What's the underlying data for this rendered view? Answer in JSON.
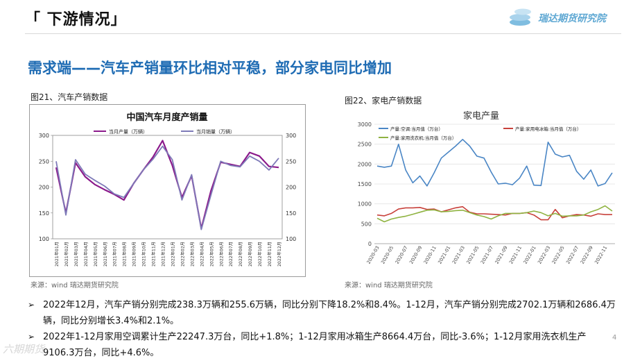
{
  "header": {
    "title": "「 下游情况」",
    "logo_text": "瑞达期货研究院"
  },
  "headline": "需求端——汽车产销量环比相对平稳，部分家电同比增加",
  "figure1": {
    "caption": "图21、汽车产销数据",
    "source": "来源：wind   瑞达期货研究院",
    "chart_data": {
      "type": "line",
      "title": "中国汽车月度产销量",
      "categories": [
        "2021年01月",
        "2021年02月",
        "2021年03月",
        "2021年04月",
        "2021年05月",
        "2021年06月",
        "2021年07月",
        "2021年08月",
        "2021年09月",
        "2021年10月",
        "2021年11月",
        "2021年12月",
        "2022年01月",
        "2022年02月",
        "2022年03月",
        "2022年04月",
        "2022年05月",
        "2022年06月",
        "2022年07月",
        "2022年08月",
        "2022年09月",
        "2022年10月",
        "2022年11月",
        "2022年12月"
      ],
      "ylim": [
        100,
        300
      ],
      "yticks": [
        100,
        150,
        200,
        250,
        300
      ],
      "legend_position": "top",
      "series": [
        {
          "name": "当月产量（万辆）",
          "color": "#8b1a8b",
          "values": [
            238,
            150,
            247,
            220,
            205,
            195,
            186,
            175,
            207,
            233,
            258,
            290,
            242,
            180,
            222,
            120,
            193,
            248,
            244,
            240,
            267,
            260,
            240,
            238
          ]
        },
        {
          "name": "当月销量（万辆）",
          "color": "#7e7ab8",
          "values": [
            250,
            146,
            253,
            225,
            213,
            202,
            187,
            180,
            207,
            233,
            254,
            279,
            253,
            175,
            224,
            118,
            185,
            250,
            242,
            239,
            260,
            250,
            233,
            256
          ]
        }
      ]
    }
  },
  "figure2": {
    "caption": "图22、家电产销数据",
    "source": "来源：wind   瑞达期货研究院",
    "chart_data": {
      "type": "line",
      "title": "家电产量",
      "ylim": [
        0,
        3000
      ],
      "yticks": [
        0,
        500,
        1000,
        1500,
        2000,
        2500,
        3000
      ],
      "xticks": [
        "2020-03",
        "2020-05",
        "2020-07",
        "2020-09",
        "2020-11",
        "2021-01",
        "2021-03",
        "2021-05",
        "2021-07",
        "2021-09",
        "2021-11",
        "2022-01",
        "2022-03",
        "2022-05",
        "2022-07",
        "2022-09",
        "2022-11"
      ],
      "legend_position": "top",
      "series": [
        {
          "name": "产量:空调:当月值（万台）",
          "color": "#4a86c5",
          "values": [
            1950,
            1920,
            1950,
            2500,
            1850,
            1530,
            1700,
            1450,
            1780,
            2150,
            2300,
            2450,
            2620,
            2450,
            2200,
            2150,
            1800,
            1500,
            1520,
            1480,
            1650,
            1950,
            1470,
            1460,
            2550,
            2250,
            2180,
            2220,
            1820,
            1620,
            1850,
            1450,
            1510,
            1780
          ]
        },
        {
          "name": "产量:家用电冰箱:当月值（万台）",
          "color": "#c8413b",
          "values": [
            720,
            700,
            760,
            870,
            900,
            900,
            910,
            860,
            870,
            800,
            850,
            900,
            930,
            790,
            750,
            750,
            740,
            730,
            720,
            760,
            760,
            780,
            720,
            600,
            600,
            860,
            650,
            700,
            730,
            720,
            690,
            750,
            730,
            730
          ]
        },
        {
          "name": "产量:家用洗衣机:当月值（万台）",
          "color": "#8fb341",
          "values": [
            640,
            550,
            620,
            660,
            690,
            740,
            790,
            840,
            850,
            800,
            810,
            830,
            840,
            780,
            720,
            680,
            620,
            700,
            760,
            760,
            760,
            780,
            820,
            780,
            700,
            760,
            690,
            700,
            700,
            720,
            800,
            860,
            950,
            820
          ]
        }
      ]
    }
  },
  "bullets": [
    "2022年12月，汽车产销分别完成238.3万辆和255.6万辆，同比分别下降18.2%和8.4%。1-12月，汽车产销分别完成2702.1万辆和2686.4万辆，同比分别增长3.4%和2.1%。",
    "2022年1-12月家用空调累计生产22247.3万台，同比+1.8%；1-12月家用冰箱生产8664.4万台，同比-3.6%；1-12月家用洗衣机生产9106.3万台，同比+4.6%。"
  ],
  "bullet_marker": "➢",
  "watermark": "六期期货",
  "page_number": "4"
}
